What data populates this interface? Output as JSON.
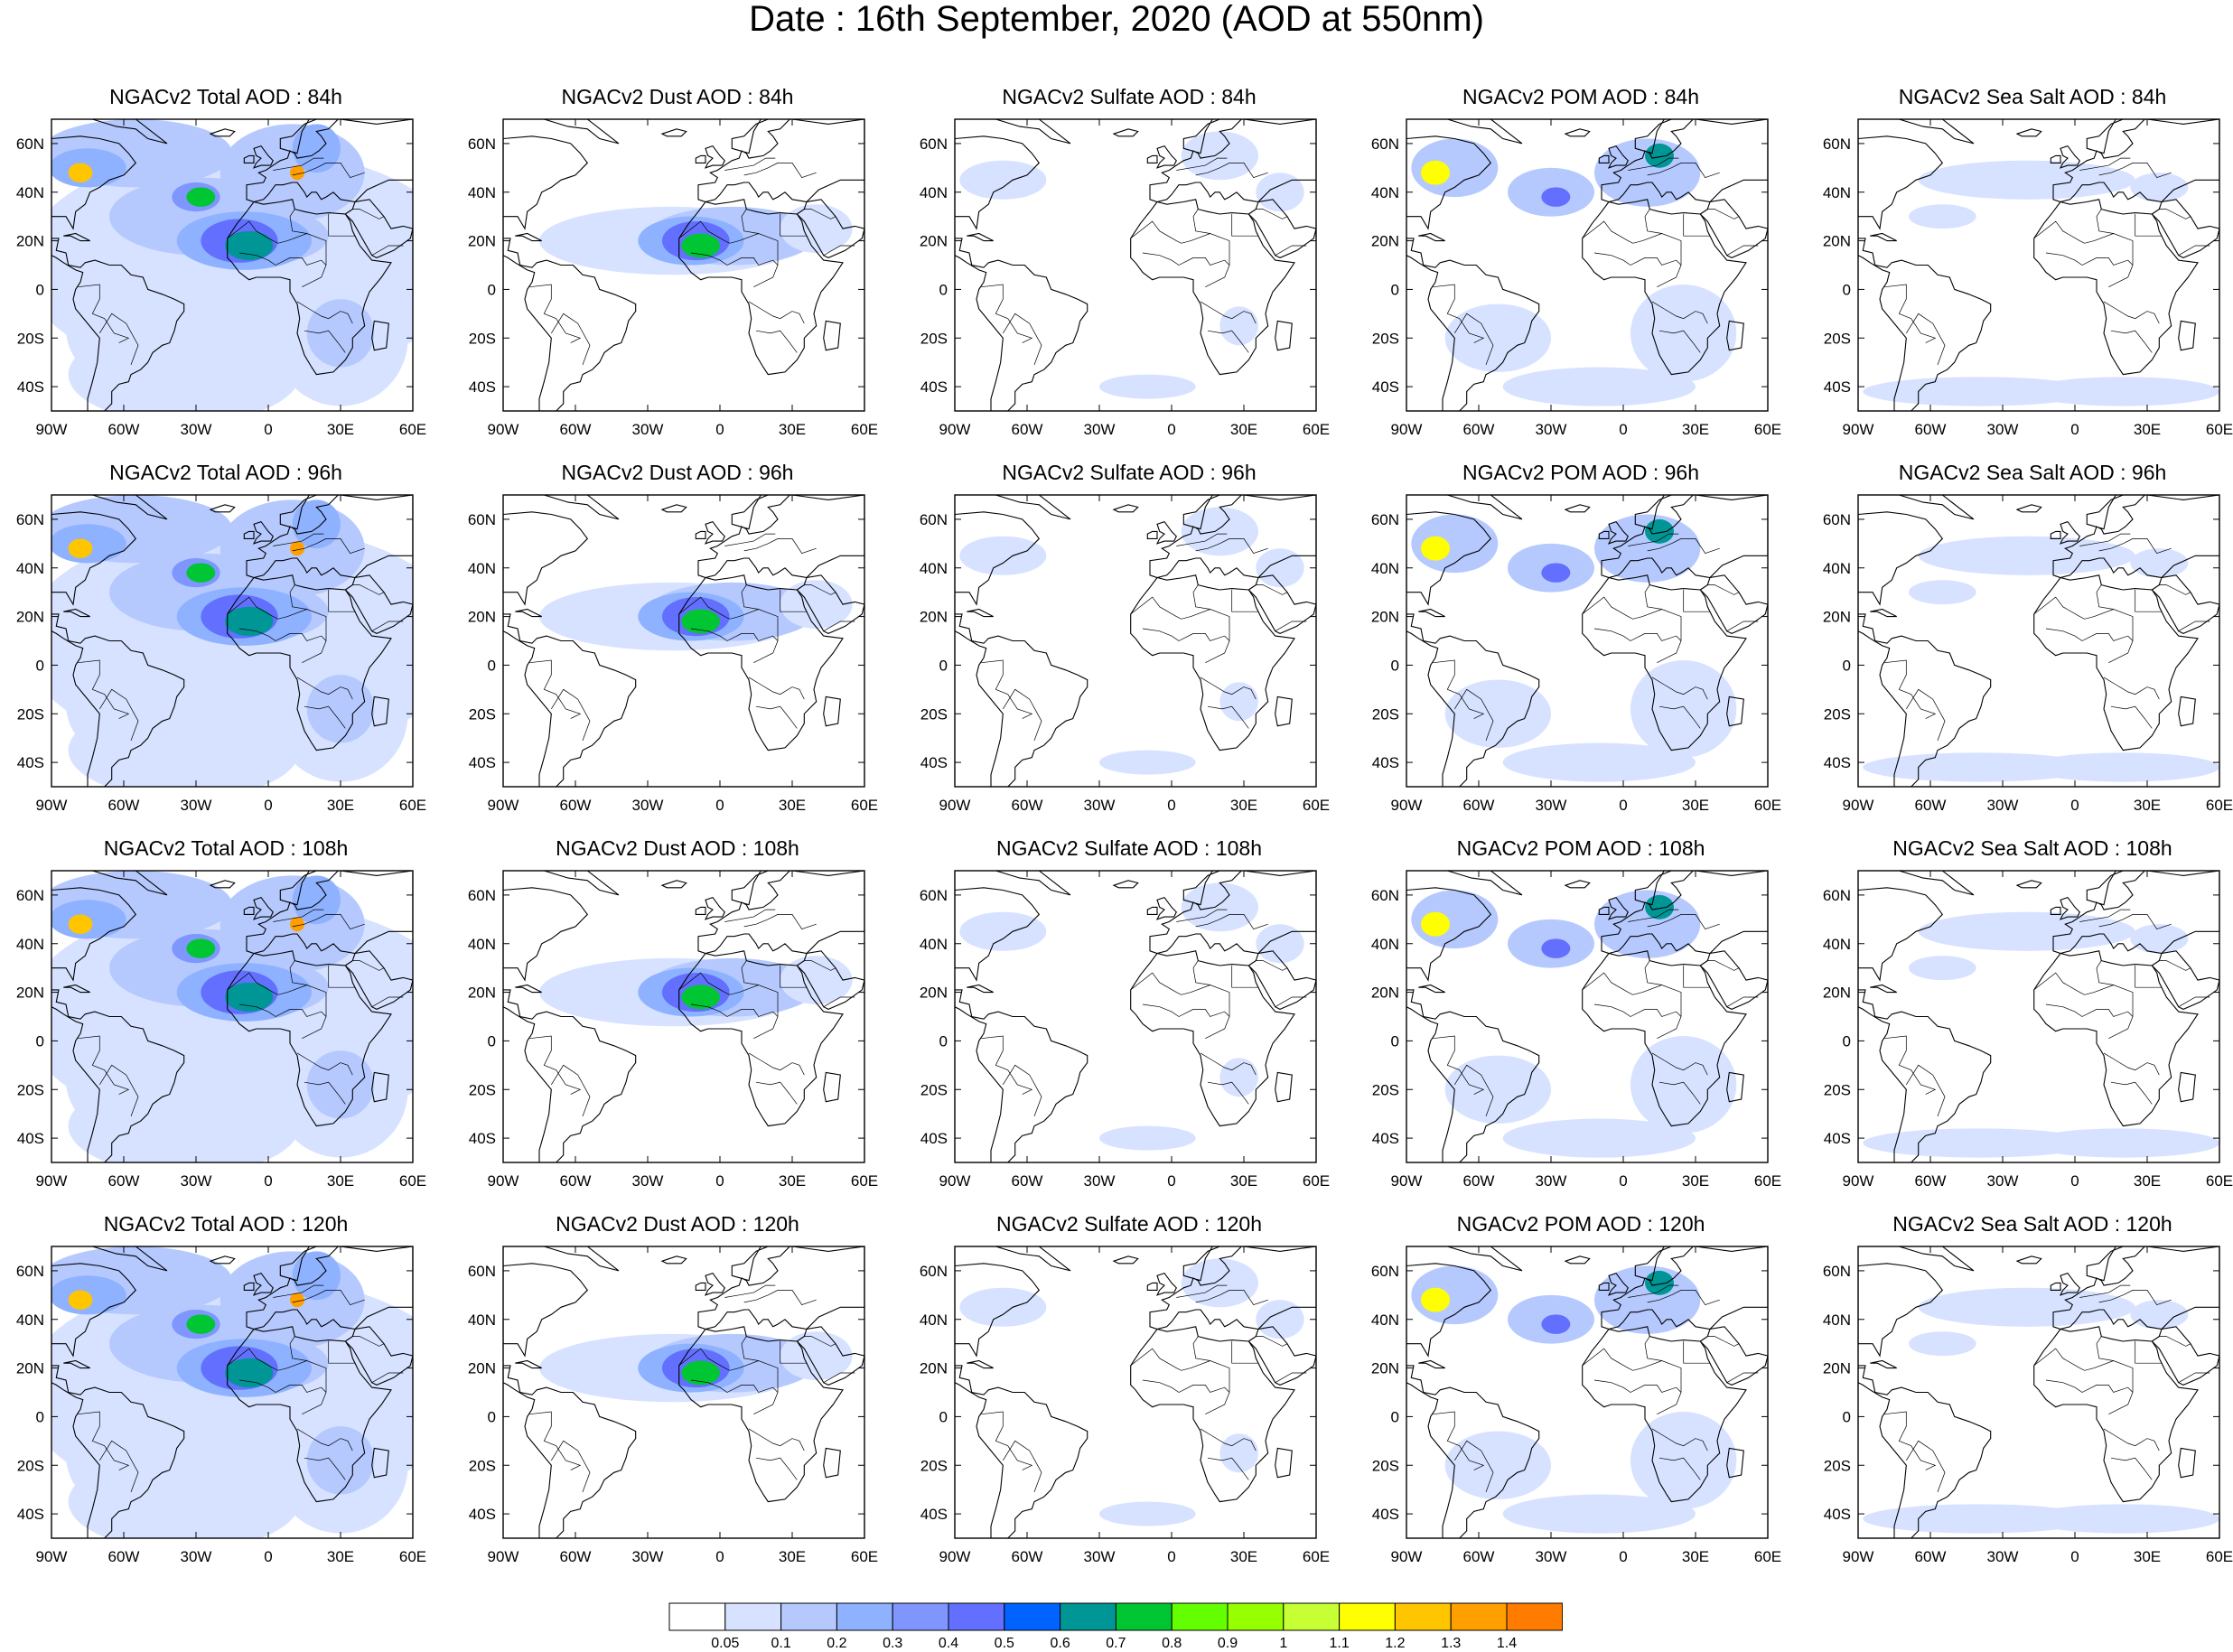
{
  "title": "Date : 16th September, 2020 (AOD at 550nm)",
  "lat_ticks": [
    "60N",
    "40N",
    "20N",
    "0",
    "20S",
    "40S"
  ],
  "lat_values": [
    60,
    40,
    20,
    0,
    -20,
    -40
  ],
  "lon_ticks": [
    "90W",
    "60W",
    "30W",
    "0",
    "30E",
    "60E"
  ],
  "lon_values": [
    -90,
    -60,
    -30,
    0,
    30,
    60
  ],
  "map_extent": {
    "lon": [
      -90,
      60
    ],
    "lat": [
      -50,
      70
    ]
  },
  "rows": [
    "84h",
    "96h",
    "108h",
    "120h"
  ],
  "species": [
    {
      "key": "total",
      "label": "NGACv2 Total AOD"
    },
    {
      "key": "dust",
      "label": "NGACv2 Dust AOD"
    },
    {
      "key": "sulfate",
      "label": "NGACv2 Sulfate AOD"
    },
    {
      "key": "pom",
      "label": "NGACv2 POM AOD"
    },
    {
      "key": "seasalt",
      "label": "NGACv2 Sea Salt AOD"
    }
  ],
  "panels": [
    [
      "NGACv2 Total AOD : 84h",
      "NGACv2 Dust AOD : 84h",
      "NGACv2 Sulfate AOD : 84h",
      "NGACv2 POM AOD : 84h",
      "NGACv2 Sea Salt AOD : 84h"
    ],
    [
      "NGACv2 Total AOD : 96h",
      "NGACv2 Dust AOD : 96h",
      "NGACv2 Sulfate AOD : 96h",
      "NGACv2 POM AOD : 96h",
      "NGACv2 Sea Salt AOD : 96h"
    ],
    [
      "NGACv2 Total AOD : 108h",
      "NGACv2 Dust AOD : 108h",
      "NGACv2 Sulfate AOD : 108h",
      "NGACv2 POM AOD : 108h",
      "NGACv2 Sea Salt AOD : 108h"
    ],
    [
      "NGACv2 Total AOD : 120h",
      "NGACv2 Dust AOD : 120h",
      "NGACv2 Sulfate AOD : 120h",
      "NGACv2 POM AOD : 120h",
      "NGACv2 Sea Salt  AOD : 120h"
    ]
  ],
  "colorbar": {
    "labels": [
      "0.05",
      "0.1",
      "0.2",
      "0.3",
      "0.4",
      "0.5",
      "0.6",
      "0.7",
      "0.8",
      "0.9",
      "1",
      "1.1",
      "1.2",
      "1.3",
      "1.4"
    ],
    "colors": [
      "#ffffff",
      "#d6e2ff",
      "#b5c9ff",
      "#8eb2ff",
      "#7f96ff",
      "#6370ff",
      "#0063ff",
      "#009696",
      "#00c633",
      "#63ff00",
      "#96ff00",
      "#c6ff33",
      "#ffff00",
      "#ffc600",
      "#ffa000",
      "#ff7c00",
      "#ff1900"
    ]
  }
}
